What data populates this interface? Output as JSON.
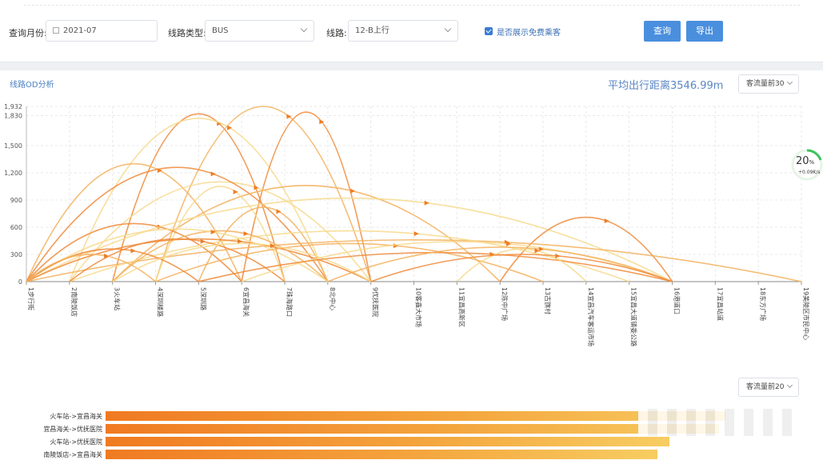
{
  "filter": {
    "month_label": "查询月份:",
    "month_value": "2021-07",
    "route_type_label": "线路类型:",
    "route_type_value": "BUS",
    "route_label": "线路:",
    "route_value": "12-B上行",
    "show_free_label": "是否展示免费乘客",
    "query_button": "查询",
    "export_button": "导出"
  },
  "od": {
    "title": "线路OD分析",
    "avg_distance": "平均出行距离3546.99m",
    "top_select": "客流量前30"
  },
  "gauge": {
    "percent": "20",
    "percent_unit": "%",
    "rate": "+0.09K/s"
  },
  "bars_section": {
    "top_select": "客流量前20"
  },
  "colors": {
    "accent": "#4a8fde",
    "arc_light": "#f7d98c",
    "arc_dark": "#f08a3a",
    "bar_start": "#f07a22",
    "bar_end": "#f7cd62"
  },
  "chart_data": {
    "type": "arc",
    "ylim": [
      0,
      1932
    ],
    "yticks": [
      "0",
      "300",
      "600",
      "900",
      "1,200",
      "1,500",
      "1,830",
      "1,932"
    ],
    "stations": [
      "1步行街",
      "2南陵饭店",
      "3火车站",
      "4深圳楼路",
      "5深圳路",
      "6宜昌海关",
      "7珠海路口",
      "8北中心",
      "9优抚医院",
      "10客鑫大市场",
      "11宜昌高新区",
      "12陈中广场",
      "13古旗村",
      "14宜昌汽车客运市场",
      "15宜昌大道镇委公路",
      "16港道口",
      "17宜昌站道",
      "18东方广场",
      "19美陵区市民中心"
    ],
    "flows": [
      {
        "from": 3,
        "to": 7,
        "value": 1850
      },
      {
        "from": 4,
        "to": 9,
        "value": 1932
      },
      {
        "from": 2,
        "to": 8,
        "value": 1800
      },
      {
        "from": 6,
        "to": 9,
        "value": 1870
      },
      {
        "from": 1,
        "to": 6,
        "value": 1300
      },
      {
        "from": 2,
        "to": 9,
        "value": 1100
      },
      {
        "from": 1,
        "to": 8,
        "value": 1260
      },
      {
        "from": 3,
        "to": 12,
        "value": 1060
      },
      {
        "from": 4,
        "to": 7,
        "value": 1050
      },
      {
        "from": 1,
        "to": 6,
        "value": 640
      },
      {
        "from": 5,
        "to": 8,
        "value": 820
      },
      {
        "from": 1,
        "to": 16,
        "value": 920
      },
      {
        "from": 12,
        "to": 16,
        "value": 710
      },
      {
        "from": 1,
        "to": 19,
        "value": 460
      },
      {
        "from": 2,
        "to": 15,
        "value": 560
      },
      {
        "from": 1,
        "to": 9,
        "value": 470
      },
      {
        "from": 3,
        "to": 8,
        "value": 560
      },
      {
        "from": 1,
        "to": 8,
        "value": 580
      },
      {
        "from": 2,
        "to": 7,
        "value": 470
      },
      {
        "from": 4,
        "to": 13,
        "value": 420
      },
      {
        "from": 6,
        "to": 16,
        "value": 440
      },
      {
        "from": 1,
        "to": 5,
        "value": 360
      },
      {
        "from": 1,
        "to": 4,
        "value": 300
      },
      {
        "from": 3,
        "to": 9,
        "value": 420
      },
      {
        "from": 5,
        "to": 16,
        "value": 320
      },
      {
        "from": 8,
        "to": 16,
        "value": 380
      },
      {
        "from": 11,
        "to": 14,
        "value": 360
      },
      {
        "from": 9,
        "to": 16,
        "value": 300
      }
    ],
    "bars": [
      {
        "label": "火车站->宜昌海关",
        "value": 100
      },
      {
        "label": "宜昌海关->优抚医院",
        "value": 99
      },
      {
        "label": "火车站->优抚医院",
        "value": 91
      },
      {
        "label": "南陵饭店->宜昌海关",
        "value": 89
      }
    ]
  }
}
